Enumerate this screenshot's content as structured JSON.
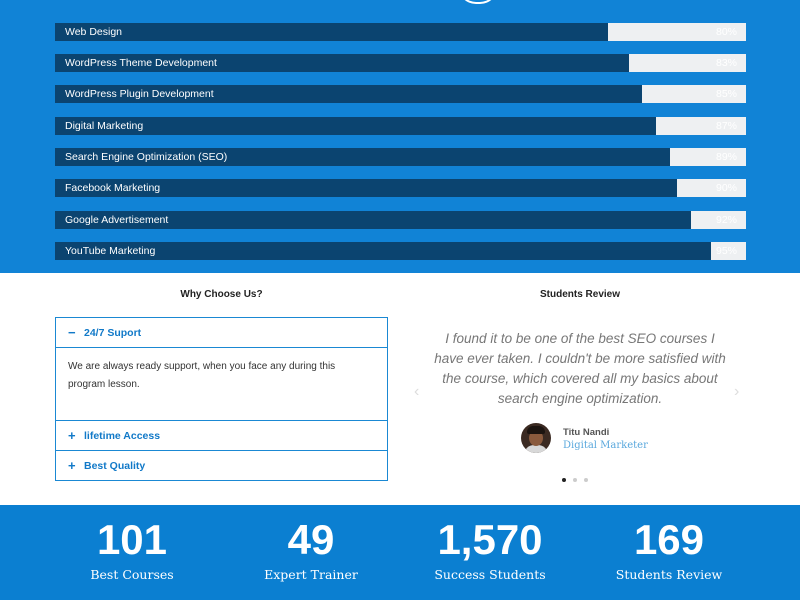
{
  "skills": [
    {
      "label": "Web Design",
      "percent": 80,
      "percent_text": "80%"
    },
    {
      "label": "WordPress Theme Development",
      "percent": 83,
      "percent_text": "83%"
    },
    {
      "label": "WordPress Plugin Development",
      "percent": 85,
      "percent_text": "85%"
    },
    {
      "label": "Digital Marketing",
      "percent": 87,
      "percent_text": "87%"
    },
    {
      "label": "Search Engine Optimization (SEO)",
      "percent": 89,
      "percent_text": "89%"
    },
    {
      "label": "Facebook Marketing",
      "percent": 90,
      "percent_text": "90%"
    },
    {
      "label": "Google Advertisement",
      "percent": 92,
      "percent_text": "92%"
    },
    {
      "label": "YouTube Marketing",
      "percent": 95,
      "percent_text": "95%"
    }
  ],
  "why": {
    "title": "Why Choose Us?",
    "items": [
      {
        "symbol": "−",
        "title": "24/7 Suport",
        "body": "We are always ready support, when you face any during this program lesson."
      },
      {
        "symbol": "+",
        "title": "lifetime Access"
      },
      {
        "symbol": "+",
        "title": "Best Quality"
      }
    ]
  },
  "review": {
    "title": "Students Review",
    "text": "I found it to be one of the best SEO courses I have ever taken. I couldn't be more satisfied with the course, which covered all my basics about search engine optimization.",
    "name": "Titu Nandi",
    "role": "Digital Marketer",
    "arrow_left": "‹",
    "arrow_right": "›",
    "slide_count": 3,
    "active_slide": 1
  },
  "stats": [
    {
      "number": "101",
      "label": "Best Courses"
    },
    {
      "number": "49",
      "label": "Expert Trainer"
    },
    {
      "number": "1,570",
      "label": "Success Students"
    },
    {
      "number": "169",
      "label": "Students Review"
    }
  ],
  "colors": {
    "skills_bg": "#1183d6",
    "bar_fill": "#0b4470",
    "bar_track": "#eef0f2",
    "accent": "#1179c8",
    "stats_bg": "#0b7fd1"
  }
}
